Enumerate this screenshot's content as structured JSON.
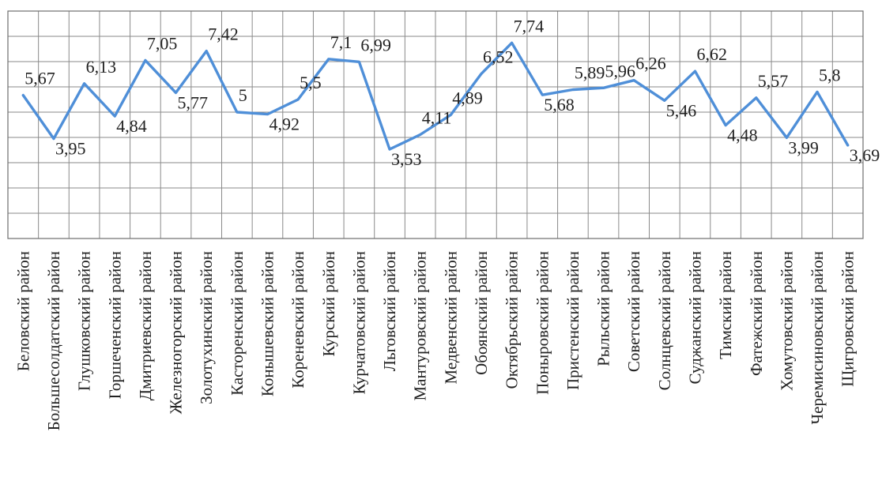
{
  "chart_data": {
    "type": "line",
    "title": "",
    "xlabel": "",
    "ylabel": "",
    "ylim": [
      0,
      9
    ],
    "grid": true,
    "legend": "none",
    "line_color": "#4f8fd8",
    "categories": [
      "Беловский район",
      "Большесолдатский район",
      "Глушковский район",
      "Горшеченский район",
      "Дмитриевский район",
      "Железногорский район",
      "Золотухинский район",
      "Касторенский район",
      "Конышевский район",
      "Кореневский район",
      "Курский район",
      "Курчатовский район",
      "Льговский район",
      "Мантуровский район",
      "Медвенский район",
      "Обоянский район",
      "Октябрьский район",
      "Поныровский район",
      "Пристенский район",
      "Рыльский район",
      "Советский район",
      "Солнцевский район",
      "Суджанский район",
      "Тимский район",
      "Фатежский район",
      "Хомутовский район",
      "Черемисиновский район",
      "Щигровский район"
    ],
    "values": [
      5.67,
      3.95,
      6.13,
      4.84,
      7.05,
      5.77,
      7.42,
      5,
      4.92,
      5.5,
      7.1,
      6.99,
      3.53,
      4.11,
      4.89,
      6.52,
      7.74,
      5.68,
      5.89,
      5.96,
      6.26,
      5.46,
      6.62,
      4.48,
      5.57,
      3.99,
      5.8,
      3.69
    ],
    "value_labels": [
      "5,67",
      "3,95",
      "6,13",
      "4,84",
      "7,05",
      "5,77",
      "7,42",
      "5",
      "4,92",
      "5,5",
      "7,1",
      "6,99",
      "3,53",
      "4,11",
      "4,89",
      "6,52",
      "7,74",
      "5,68",
      "5,89",
      "5,96",
      "6,26",
      "5,46",
      "6,62",
      "4,48",
      "5,57",
      "3,99",
      "5,8",
      "3,69"
    ]
  }
}
